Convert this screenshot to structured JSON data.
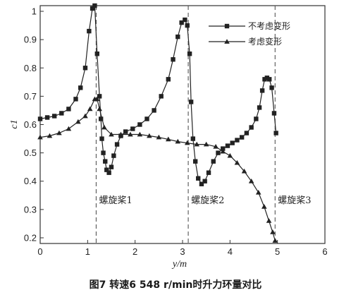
{
  "caption": "图7   转速6  548 r/min时升力环量对比",
  "chart_data": {
    "type": "line",
    "title": "",
    "xlabel": "y/m",
    "ylabel": "c1",
    "xlim": [
      0,
      6
    ],
    "ylim": [
      0.18,
      1.02
    ],
    "xticks": [
      "0",
      "1",
      "2",
      "3",
      "4",
      "5",
      "6"
    ],
    "yticks": [
      "0.2",
      "0.3",
      "0.4",
      "0.5",
      "0.6",
      "0.7",
      "0.8",
      "0.9",
      "1"
    ],
    "grid": false,
    "legend_position": "top-right",
    "series": [
      {
        "name": "不考虑变形",
        "marker": "square",
        "x": [
          0.0,
          0.15,
          0.3,
          0.45,
          0.6,
          0.75,
          0.85,
          0.95,
          1.03,
          1.1,
          1.15,
          1.2,
          1.25,
          1.28,
          1.3,
          1.33,
          1.37,
          1.4,
          1.45,
          1.5,
          1.55,
          1.62,
          1.7,
          1.8,
          1.95,
          2.1,
          2.25,
          2.4,
          2.55,
          2.7,
          2.8,
          2.9,
          2.98,
          3.05,
          3.1,
          3.15,
          3.18,
          3.22,
          3.27,
          3.33,
          3.4,
          3.47,
          3.55,
          3.65,
          3.75,
          3.85,
          3.95,
          4.05,
          4.15,
          4.25,
          4.35,
          4.45,
          4.55,
          4.62,
          4.68,
          4.73,
          4.78,
          4.83,
          4.88,
          4.93,
          4.97
        ],
        "y": [
          0.62,
          0.625,
          0.63,
          0.64,
          0.655,
          0.69,
          0.73,
          0.8,
          0.93,
          1.01,
          1.02,
          0.85,
          0.7,
          0.62,
          0.55,
          0.5,
          0.47,
          0.44,
          0.43,
          0.45,
          0.49,
          0.53,
          0.56,
          0.575,
          0.585,
          0.6,
          0.62,
          0.65,
          0.7,
          0.76,
          0.83,
          0.91,
          0.96,
          0.97,
          0.95,
          0.85,
          0.68,
          0.55,
          0.47,
          0.41,
          0.39,
          0.4,
          0.43,
          0.47,
          0.5,
          0.515,
          0.525,
          0.535,
          0.545,
          0.555,
          0.57,
          0.59,
          0.62,
          0.66,
          0.72,
          0.76,
          0.765,
          0.76,
          0.73,
          0.64,
          0.57
        ]
      },
      {
        "name": "考虑变形",
        "marker": "triangle",
        "x": [
          0.0,
          0.2,
          0.4,
          0.6,
          0.8,
          0.95,
          1.05,
          1.15,
          1.2,
          1.25,
          1.35,
          1.5,
          1.7,
          1.9,
          2.1,
          2.3,
          2.5,
          2.7,
          2.9,
          3.1,
          3.3,
          3.5,
          3.7,
          3.85,
          4.0,
          4.15,
          4.3,
          4.45,
          4.6,
          4.72,
          4.82,
          4.9,
          4.95
        ],
        "y": [
          0.555,
          0.56,
          0.57,
          0.585,
          0.61,
          0.63,
          0.655,
          0.69,
          0.69,
          0.655,
          0.59,
          0.565,
          0.565,
          0.565,
          0.565,
          0.56,
          0.555,
          0.548,
          0.54,
          0.535,
          0.53,
          0.53,
          0.522,
          0.505,
          0.49,
          0.465,
          0.435,
          0.4,
          0.36,
          0.31,
          0.26,
          0.22,
          0.19
        ]
      }
    ],
    "reference_lines": [
      {
        "x": 1.18,
        "label": "螺旋桨1"
      },
      {
        "x": 3.12,
        "label": "螺旋桨2"
      },
      {
        "x": 4.95,
        "label": "螺旋桨3"
      }
    ]
  }
}
